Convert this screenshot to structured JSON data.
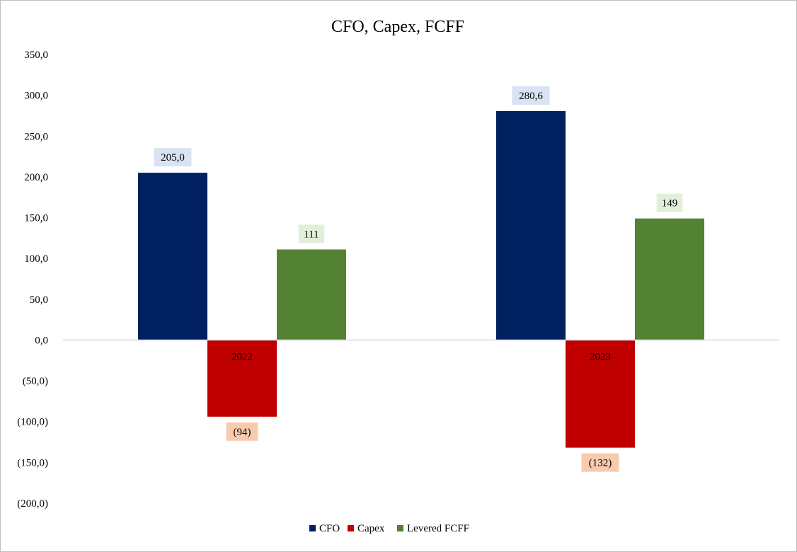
{
  "chart_data": {
    "type": "bar",
    "title": "CFO, Capex, FCFF",
    "categories": [
      "2022",
      "2023"
    ],
    "series": [
      {
        "name": "CFO",
        "values": [
          205.0,
          280.6
        ],
        "labels": [
          "205,0",
          "280,6"
        ],
        "color": "#002060",
        "label_bg": "#dae3f3"
      },
      {
        "name": "Capex",
        "values": [
          -94,
          -132
        ],
        "labels": [
          "(94)",
          "(132)"
        ],
        "color": "#c00000",
        "label_bg": "#f8cbad"
      },
      {
        "name": "Levered FCFF",
        "values": [
          111,
          149
        ],
        "labels": [
          "111",
          "149"
        ],
        "color": "#548235",
        "label_bg": "#e2f0d9"
      }
    ],
    "ylim": [
      -200,
      350
    ],
    "yticks": [
      350,
      300,
      250,
      200,
      150,
      100,
      50,
      0,
      -50,
      -100,
      -150,
      -200
    ],
    "ytick_labels": [
      "350,0",
      "300,0",
      "250,0",
      "200,0",
      "150,0",
      "100,0",
      "50,0",
      "0,0",
      "(50,0)",
      "(100,0)",
      "(150,0)",
      "(200,0)"
    ],
    "grid": false,
    "legend_position": "bottom",
    "xlabel": "",
    "ylabel": ""
  }
}
